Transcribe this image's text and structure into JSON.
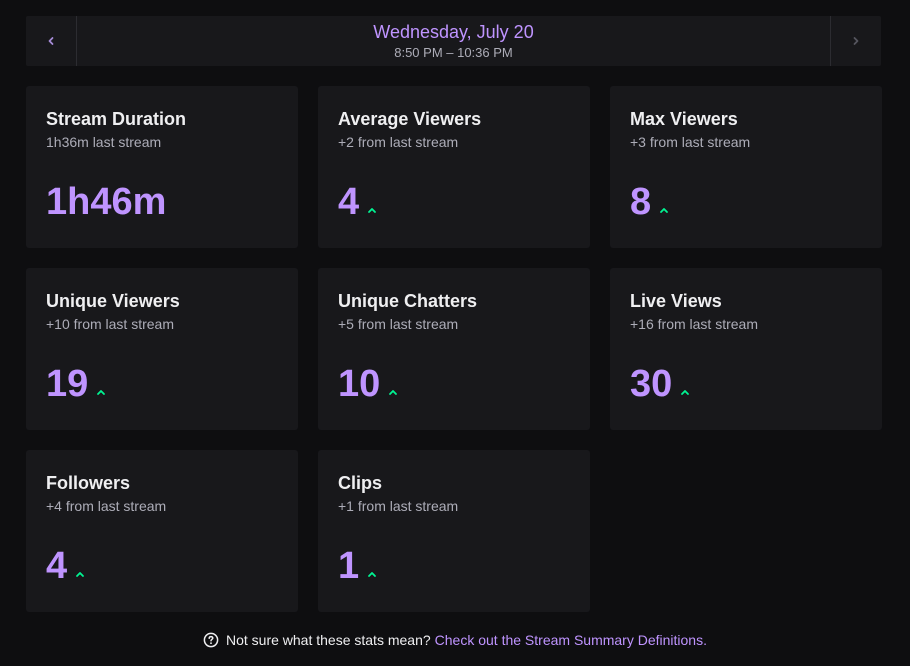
{
  "date_nav": {
    "date": "Wednesday, July 20",
    "time_range": "8:50 PM – 10:36 PM",
    "prev_icon": "chevron-left-icon",
    "next_icon": "chevron-right-icon"
  },
  "colors": {
    "accent": "#bf94ff",
    "up": "#00f593",
    "card_bg": "#18181b",
    "page_bg": "#0e0e10"
  },
  "stats": [
    {
      "title": "Stream Duration",
      "sub": "1h36m last stream",
      "value": "1h46m",
      "trend": "none"
    },
    {
      "title": "Average Viewers",
      "sub": "+2 from last stream",
      "value": "4",
      "trend": "up"
    },
    {
      "title": "Max Viewers",
      "sub": "+3 from last stream",
      "value": "8",
      "trend": "up"
    },
    {
      "title": "Unique Viewers",
      "sub": "+10 from last stream",
      "value": "19",
      "trend": "up"
    },
    {
      "title": "Unique Chatters",
      "sub": "+5 from last stream",
      "value": "10",
      "trend": "up"
    },
    {
      "title": "Live Views",
      "sub": "+16 from last stream",
      "value": "30",
      "trend": "up"
    },
    {
      "title": "Followers",
      "sub": "+4 from last stream",
      "value": "4",
      "trend": "up"
    },
    {
      "title": "Clips",
      "sub": "+1 from last stream",
      "value": "1",
      "trend": "up"
    }
  ],
  "footer": {
    "question": "Not sure what these stats mean?",
    "link": "Check out the Stream Summary Definitions.",
    "icon": "help-circle-icon"
  }
}
